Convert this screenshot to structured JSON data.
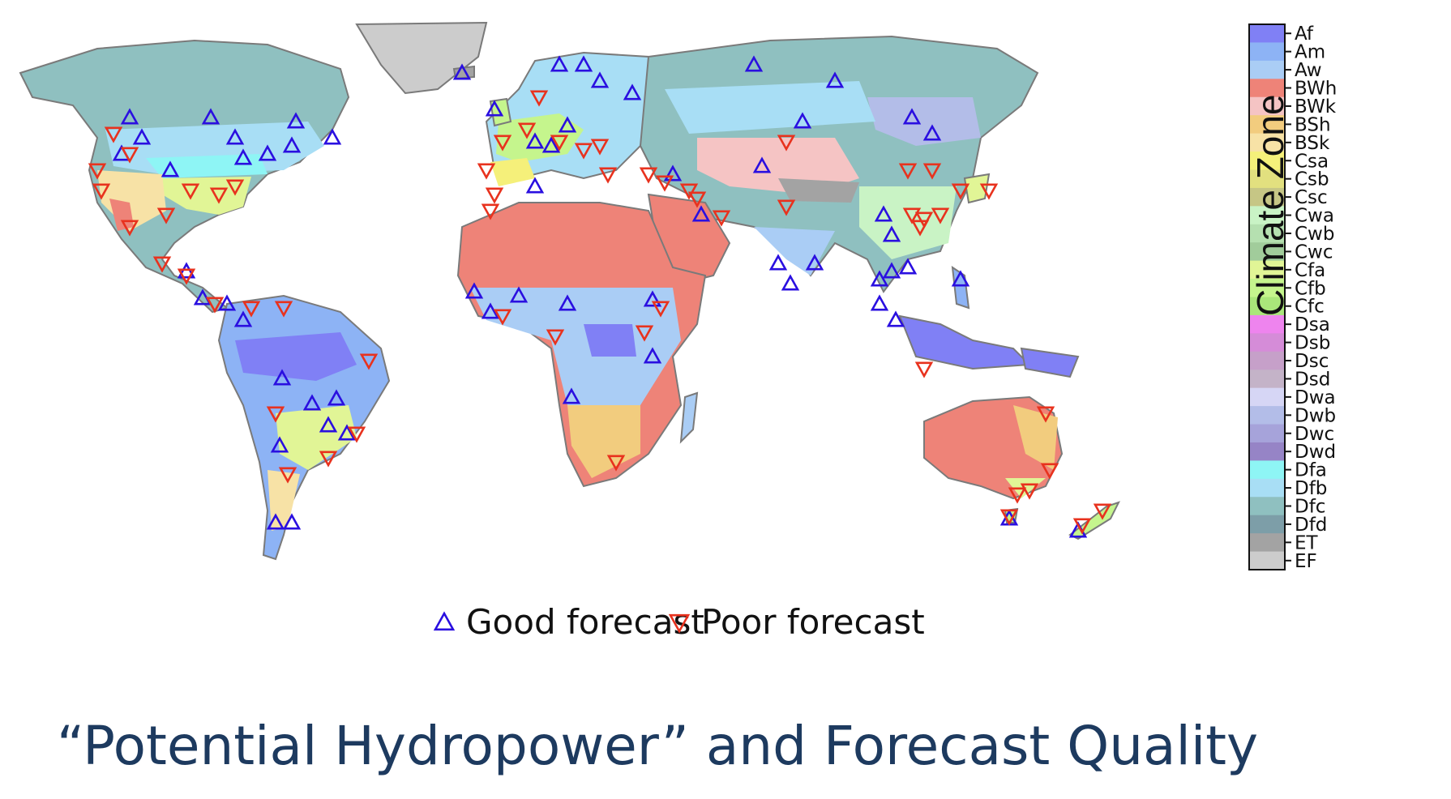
{
  "title": "“Potential Hydropower” and Forecast Quality",
  "colorbar": {
    "title": "Climate Zone",
    "zones": [
      {
        "code": "Af",
        "color": "#8080f5"
      },
      {
        "code": "Am",
        "color": "#8db3f5"
      },
      {
        "code": "Aw",
        "color": "#aacdf5"
      },
      {
        "code": "BWh",
        "color": "#ee8378"
      },
      {
        "code": "BWk",
        "color": "#f5c4c4"
      },
      {
        "code": "BSh",
        "color": "#f2cc7e"
      },
      {
        "code": "BSk",
        "color": "#f7e2a6"
      },
      {
        "code": "Csa",
        "color": "#f5f07a"
      },
      {
        "code": "Csb",
        "color": "#e2e07f"
      },
      {
        "code": "Csc",
        "color": "#c6c685"
      },
      {
        "code": "Cwa",
        "color": "#c9f3c5"
      },
      {
        "code": "Cwb",
        "color": "#b5e0b0"
      },
      {
        "code": "Cwc",
        "color": "#a1cc9b"
      },
      {
        "code": "Cfa",
        "color": "#e1f596"
      },
      {
        "code": "Cfb",
        "color": "#c5f58d"
      },
      {
        "code": "Cfc",
        "color": "#aae67a"
      },
      {
        "code": "Dsa",
        "color": "#ee84ee"
      },
      {
        "code": "Dsb",
        "color": "#d58cd8"
      },
      {
        "code": "Dsc",
        "color": "#c6a0c9"
      },
      {
        "code": "Dsd",
        "color": "#c4b3c8"
      },
      {
        "code": "Dwa",
        "color": "#d6d6f5"
      },
      {
        "code": "Dwb",
        "color": "#b3bde8"
      },
      {
        "code": "Dwc",
        "color": "#a6a3da"
      },
      {
        "code": "Dwd",
        "color": "#9684c6"
      },
      {
        "code": "Dfa",
        "color": "#8ef5f5"
      },
      {
        "code": "Dfb",
        "color": "#a8def5"
      },
      {
        "code": "Dfc",
        "color": "#8fc0c0"
      },
      {
        "code": "Dfd",
        "color": "#7d9ea8"
      },
      {
        "code": "ET",
        "color": "#a3a3a3"
      },
      {
        "code": "EF",
        "color": "#cccccc"
      }
    ]
  },
  "legend": {
    "good_label": "Good forecast",
    "poor_label": "Poor forecast",
    "good_color": "#2a0fe0",
    "poor_color": "#e8321e"
  },
  "colors": {
    "title_color": "#1d3a5f",
    "ocean": "#ffffff",
    "coastline": "#7a7a7a"
  }
}
